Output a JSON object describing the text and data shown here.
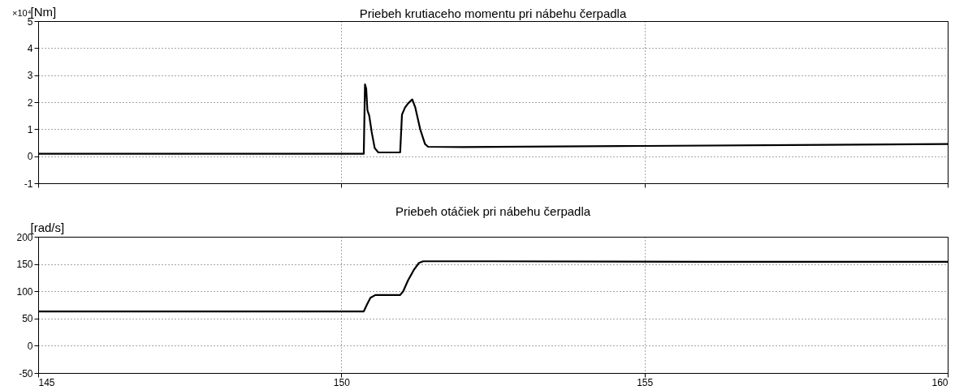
{
  "chart_data": [
    {
      "type": "line",
      "title": "Priebeh krutiaceho momentu pri nábehu čerpadla",
      "ylabel": "[Nm]",
      "annotations": [
        "×10⁴"
      ],
      "xlim": [
        145,
        160
      ],
      "xticks": [
        145,
        150,
        155,
        160
      ],
      "ylim": [
        -1,
        5
      ],
      "yticks": [
        -1,
        0,
        1,
        2,
        3,
        4,
        5
      ],
      "grid": true,
      "tick_labels": "y",
      "line_style": "solid",
      "marker": "none",
      "series": [
        {
          "color": "#000000",
          "x": [
            145,
            150.37,
            150.39,
            150.41,
            150.43,
            150.46,
            150.5,
            150.55,
            150.61,
            150.97,
            151.0,
            151.05,
            151.1,
            151.17,
            151.22,
            151.3,
            151.38,
            151.43,
            152,
            155,
            158,
            160
          ],
          "values": [
            0.09,
            0.09,
            2.66,
            2.5,
            1.7,
            1.5,
            0.9,
            0.3,
            0.14,
            0.14,
            1.54,
            1.8,
            1.95,
            2.1,
            1.8,
            1.0,
            0.45,
            0.35,
            0.34,
            0.38,
            0.42,
            0.45
          ]
        }
      ]
    },
    {
      "type": "line",
      "title": "Priebeh otáčiek pri nábehu čerpadla",
      "ylabel": "[rad/s]",
      "xlim": [
        145,
        160
      ],
      "xticks": [
        145,
        150,
        155,
        160
      ],
      "ylim": [
        -50,
        200
      ],
      "yticks": [
        -50,
        0,
        50,
        100,
        150,
        200
      ],
      "grid": true,
      "line_style": "solid",
      "marker": "none",
      "series": [
        {
          "color": "#000000",
          "x": [
            145,
            150.37,
            150.42,
            150.48,
            150.56,
            150.97,
            151.02,
            151.1,
            151.2,
            151.28,
            151.35,
            152.5,
            156,
            160
          ],
          "values": [
            63,
            63,
            75,
            88,
            93,
            93,
            100,
            120,
            140,
            152,
            155,
            155,
            154,
            154
          ]
        }
      ]
    }
  ]
}
